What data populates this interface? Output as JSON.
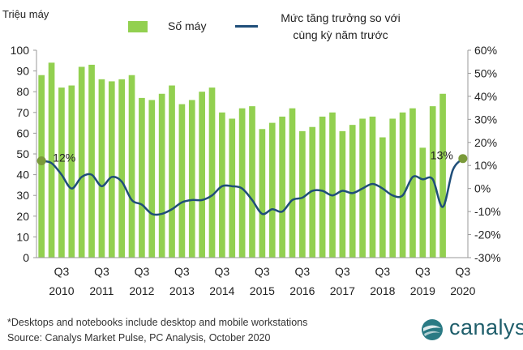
{
  "chart_data": {
    "type": "bar",
    "ylabel": "Triệu máy",
    "ylim_left": [
      0,
      100
    ],
    "ylim_right": [
      -30,
      60
    ],
    "left_ticks": [
      0,
      10,
      20,
      30,
      40,
      50,
      60,
      70,
      80,
      90,
      100
    ],
    "right_ticks": [
      "-30%",
      "-20%",
      "-10%",
      "0%",
      "10%",
      "20%",
      "30%",
      "40%",
      "50%",
      "60%"
    ],
    "categories": [
      "Q1 2010",
      "Q2 2010",
      "Q3 2010",
      "Q4 2010",
      "Q1 2011",
      "Q2 2011",
      "Q3 2011",
      "Q4 2011",
      "Q1 2012",
      "Q2 2012",
      "Q3 2012",
      "Q4 2012",
      "Q1 2013",
      "Q2 2013",
      "Q3 2013",
      "Q4 2013",
      "Q1 2014",
      "Q2 2014",
      "Q3 2014",
      "Q4 2014",
      "Q1 2015",
      "Q2 2015",
      "Q3 2015",
      "Q4 2015",
      "Q1 2016",
      "Q2 2016",
      "Q3 2016",
      "Q4 2016",
      "Q1 2017",
      "Q2 2017",
      "Q3 2017",
      "Q4 2017",
      "Q1 2018",
      "Q2 2018",
      "Q3 2018",
      "Q4 2018",
      "Q1 2019",
      "Q2 2019",
      "Q3 2019",
      "Q4 2019",
      "Q1 2020",
      "Q2 2020",
      "Q3 2020"
    ],
    "x_tick_labels": [
      {
        "index": 2,
        "line1": "Q3",
        "line2": "2010"
      },
      {
        "index": 6,
        "line1": "Q3",
        "line2": "2011"
      },
      {
        "index": 10,
        "line1": "Q3",
        "line2": "2012"
      },
      {
        "index": 14,
        "line1": "Q3",
        "line2": "2013"
      },
      {
        "index": 18,
        "line1": "Q3",
        "line2": "2014"
      },
      {
        "index": 22,
        "line1": "Q3",
        "line2": "2015"
      },
      {
        "index": 26,
        "line1": "Q3",
        "line2": "2016"
      },
      {
        "index": 30,
        "line1": "Q3",
        "line2": "2017"
      },
      {
        "index": 34,
        "line1": "Q3",
        "line2": "2018"
      },
      {
        "index": 38,
        "line1": "Q3",
        "line2": "2019"
      },
      {
        "index": 42,
        "line1": "Q3",
        "line2": "2020"
      }
    ],
    "series": [
      {
        "name": "Số máy",
        "kind": "bar",
        "axis": "left",
        "color": "#92d050",
        "values": [
          88,
          94,
          82,
          83,
          92,
          93,
          86,
          85,
          86,
          88,
          77,
          76,
          79,
          83,
          74,
          76,
          80,
          82,
          70,
          67,
          72,
          73,
          62,
          65,
          68,
          72,
          61,
          63,
          68,
          70,
          61,
          64,
          67,
          68,
          58,
          67,
          70,
          72,
          53,
          73,
          79,
          null,
          null
        ]
      },
      {
        "name": "Mức tăng trưởng so với cùng kỳ năm trước",
        "kind": "line",
        "axis": "right",
        "color": "#1f4e79",
        "values": [
          12,
          11,
          6,
          0,
          5,
          6,
          1,
          5,
          3,
          -5,
          -7,
          -11,
          -11,
          -9,
          -6,
          -5,
          -5,
          -3,
          1,
          1,
          0,
          -5,
          -11,
          -9,
          -10,
          -5,
          -4,
          -1,
          -1,
          -3,
          -1,
          -2,
          0,
          2,
          0,
          -3,
          -3,
          5,
          4,
          4,
          -8,
          8,
          13
        ]
      }
    ],
    "markers": [
      {
        "index": 0,
        "value": 12,
        "label": "12%"
      },
      {
        "index": 42,
        "value": 13,
        "label": "13%"
      }
    ],
    "legend": {
      "bar_label": "Số máy",
      "line_label_1": "Mức tăng trưởng so với",
      "line_label_2": "cùng kỳ năm trước",
      "placement": "top"
    }
  },
  "footnote": "*Desktops and notebooks include desktop and mobile workstations",
  "source": "Source: Canalys Market Pulse, PC Analysis, October 2020",
  "brand": "canalys",
  "colors": {
    "bar": "#92d050",
    "line": "#1f4e79",
    "marker": "#7a9a3a",
    "brand": "#1f5e6b"
  }
}
